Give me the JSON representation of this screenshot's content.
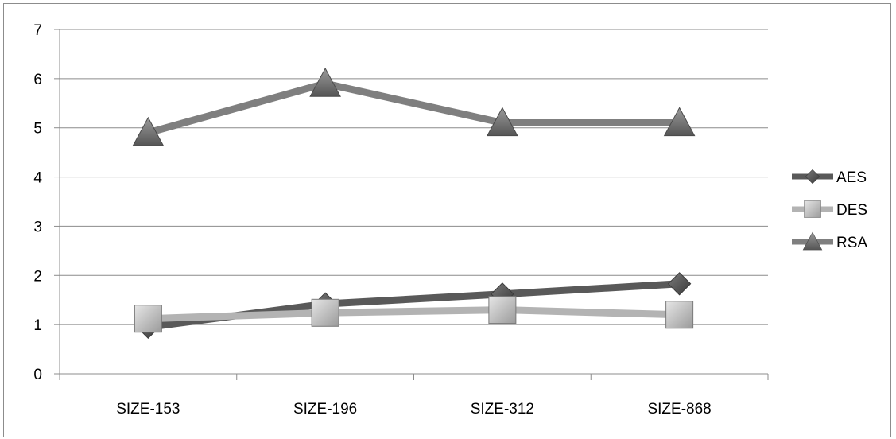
{
  "chart_data": {
    "type": "line",
    "title": "",
    "xlabel": "",
    "ylabel": "",
    "categories": [
      "SIZE-153",
      "SIZE-196",
      "SIZE-312",
      "SIZE-868"
    ],
    "ylim": [
      0,
      7
    ],
    "yticks": [
      "0",
      "1",
      "2",
      "3",
      "4",
      "5",
      "6",
      "7"
    ],
    "grid": true,
    "legend_position": "right",
    "series": [
      {
        "name": "AES",
        "values": [
          0.95,
          1.42,
          1.62,
          1.83
        ],
        "color": "#595959",
        "marker": "diamond"
      },
      {
        "name": "DES",
        "values": [
          1.12,
          1.24,
          1.3,
          1.2
        ],
        "color": "#b3b3b3",
        "marker": "square"
      },
      {
        "name": "RSA",
        "values": [
          4.9,
          5.9,
          5.1,
          5.1
        ],
        "color": "#7f7f7f",
        "marker": "triangle"
      }
    ]
  }
}
